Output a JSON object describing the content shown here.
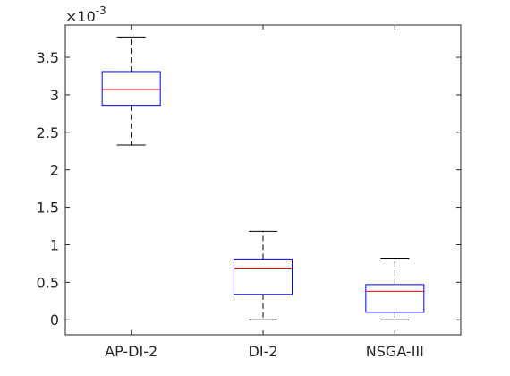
{
  "chart_data": {
    "type": "boxplot",
    "title": "",
    "xlabel": "",
    "ylabel": "",
    "y_scale_multiplier": {
      "base": "×10",
      "exponent": "-3"
    },
    "categories": [
      "AP-DI-2",
      "DI-2",
      "NSGA-III"
    ],
    "y_ticks": [
      0,
      0.5,
      1,
      1.5,
      2,
      2.5,
      3,
      3.5
    ],
    "y_tick_labels": [
      "0",
      "0.5",
      "1",
      "1.5",
      "2",
      "2.5",
      "3",
      "3.5"
    ],
    "ylim": [
      -0.2,
      3.93
    ],
    "grid": false,
    "box_color": "#0000ff",
    "median_color": "#ff0000",
    "whisker_color": "#000000",
    "boxes": [
      {
        "category": "AP-DI-2",
        "whisker_low": 2.33,
        "q1": 2.86,
        "median": 3.07,
        "q3": 3.31,
        "whisker_high": 3.77
      },
      {
        "category": "DI-2",
        "whisker_low": 0.0,
        "q1": 0.34,
        "median": 0.69,
        "q3": 0.81,
        "whisker_high": 1.18
      },
      {
        "category": "NSGA-III",
        "whisker_low": 0.0,
        "q1": 0.1,
        "median": 0.38,
        "q3": 0.47,
        "whisker_high": 0.82
      }
    ]
  }
}
